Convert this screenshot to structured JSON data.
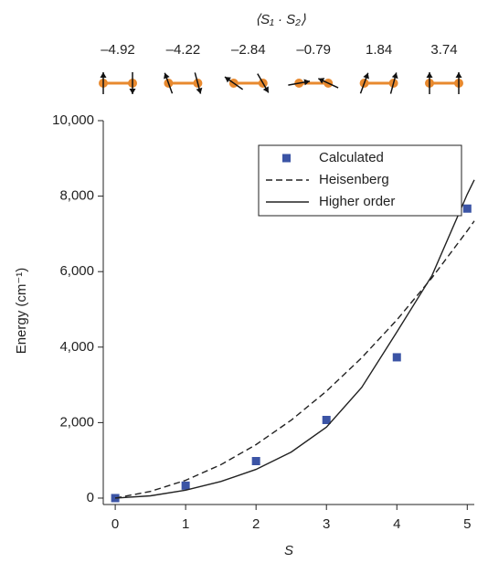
{
  "chart_data": {
    "type": "scatter-line",
    "top_label": "⟨S₁ · S₂⟩",
    "spin_correlations": [
      {
        "value": -4.92,
        "label": "–4.92"
      },
      {
        "value": -4.22,
        "label": "–4.22"
      },
      {
        "value": -2.84,
        "label": "–2.84"
      },
      {
        "value": -0.79,
        "label": "–0.79"
      },
      1.84,
      3.74
    ],
    "x_label": "S",
    "y_label": "Energy (cm⁻¹)",
    "xlim": [
      -0.17,
      5.1
    ],
    "ylim": [
      -170,
      10000
    ],
    "xticks": [
      0,
      1,
      2,
      3,
      4,
      5
    ],
    "yticks": [
      0,
      {
        "value": 2000,
        "label": "2,000"
      },
      {
        "value": 4000,
        "label": "4,000"
      },
      {
        "value": 6000,
        "label": "6,000"
      },
      {
        "value": 8000,
        "label": "8,000"
      },
      {
        "value": 10000,
        "label": "10,000"
      }
    ],
    "legend": "upper right",
    "series": [
      {
        "name": "Calculated",
        "color": "#3b54a5",
        "style": "markers",
        "x": [
          0,
          1,
          2,
          3,
          4,
          5
        ],
        "values": [
          0,
          330,
          980,
          2070,
          3730,
          7670
        ]
      },
      {
        "name": "Heisenberg",
        "color": "#222222",
        "style": "dashed",
        "x": [
          0,
          0.5,
          1,
          1.5,
          2,
          2.5,
          3,
          3.5,
          4,
          4.5,
          5,
          5.1
        ],
        "values": [
          0,
          177,
          472,
          885,
          1416,
          2065,
          2832,
          3717,
          4720,
          5841,
          7080,
          7342
        ]
      },
      {
        "name": "Higher order",
        "color": "#222222",
        "style": "solid",
        "x": [
          0,
          0.5,
          1,
          1.5,
          2,
          2.5,
          3,
          3.5,
          4,
          4.5,
          5,
          5.1
        ],
        "values": [
          0,
          60,
          210,
          440,
          760,
          1220,
          1880,
          2930,
          4400,
          5900,
          8050,
          8430
        ]
      }
    ]
  }
}
